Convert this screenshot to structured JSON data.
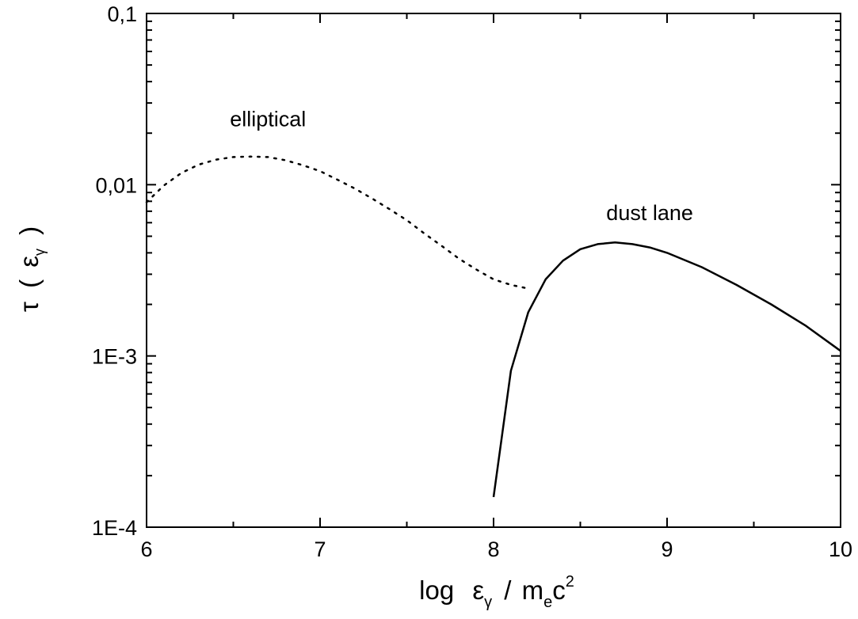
{
  "chart_data": {
    "type": "line",
    "x_scale": "linear",
    "y_scale": "log",
    "xlim": [
      6,
      10
    ],
    "ylim": [
      0.0001,
      0.1
    ],
    "x_ticks": [
      6,
      7,
      8,
      9,
      10
    ],
    "x_tick_labels": [
      "6",
      "7",
      "8",
      "9",
      "10"
    ],
    "y_ticks": [
      0.0001,
      0.001,
      0.01,
      0.1
    ],
    "y_tick_labels": [
      "1E-4",
      "1E-3",
      "0,01",
      "0,1"
    ],
    "xlabel": {
      "prefix": "log",
      "symbol": "ε",
      "symbol_sub": "γ",
      "divider": "/",
      "mass": "m",
      "mass_sub": "e",
      "light": "c",
      "light_sup": "2"
    },
    "ylabel": {
      "tau": "τ",
      "open": "(",
      "symbol": "ε",
      "symbol_sub": "γ",
      "close": ")"
    },
    "grid": false,
    "legend": "none",
    "series": [
      {
        "label": "elliptical",
        "line_style": "dotted",
        "color": "#000000",
        "x": [
          6.0,
          6.1,
          6.2,
          6.3,
          6.4,
          6.5,
          6.6,
          6.7,
          6.8,
          6.9,
          7.0,
          7.1,
          7.2,
          7.3,
          7.4,
          7.5,
          7.6,
          7.7,
          7.8,
          7.9,
          8.0,
          8.1,
          8.18
        ],
        "y": [
          0.0079,
          0.0099,
          0.0117,
          0.0131,
          0.014,
          0.0145,
          0.0146,
          0.0145,
          0.0139,
          0.013,
          0.012,
          0.0107,
          0.0095,
          0.0083,
          0.0072,
          0.0062,
          0.0052,
          0.0044,
          0.0037,
          0.0032,
          0.0028,
          0.0026,
          0.0025
        ]
      },
      {
        "label": "dust lane",
        "line_style": "solid",
        "color": "#000000",
        "x": [
          8.0,
          8.1,
          8.2,
          8.3,
          8.4,
          8.5,
          8.6,
          8.7,
          8.8,
          8.9,
          9.0,
          9.2,
          9.4,
          9.6,
          9.8,
          10.0
        ],
        "y": [
          0.00015,
          0.00082,
          0.0018,
          0.0028,
          0.0036,
          0.0042,
          0.0045,
          0.0046,
          0.0045,
          0.0043,
          0.004,
          0.0033,
          0.0026,
          0.002,
          0.0015,
          0.00107
        ]
      }
    ],
    "annotations": [
      {
        "text": "elliptical",
        "x": 6.7,
        "y": 0.022
      },
      {
        "text": "dust lane",
        "x": 8.9,
        "y": 0.0062
      }
    ]
  }
}
